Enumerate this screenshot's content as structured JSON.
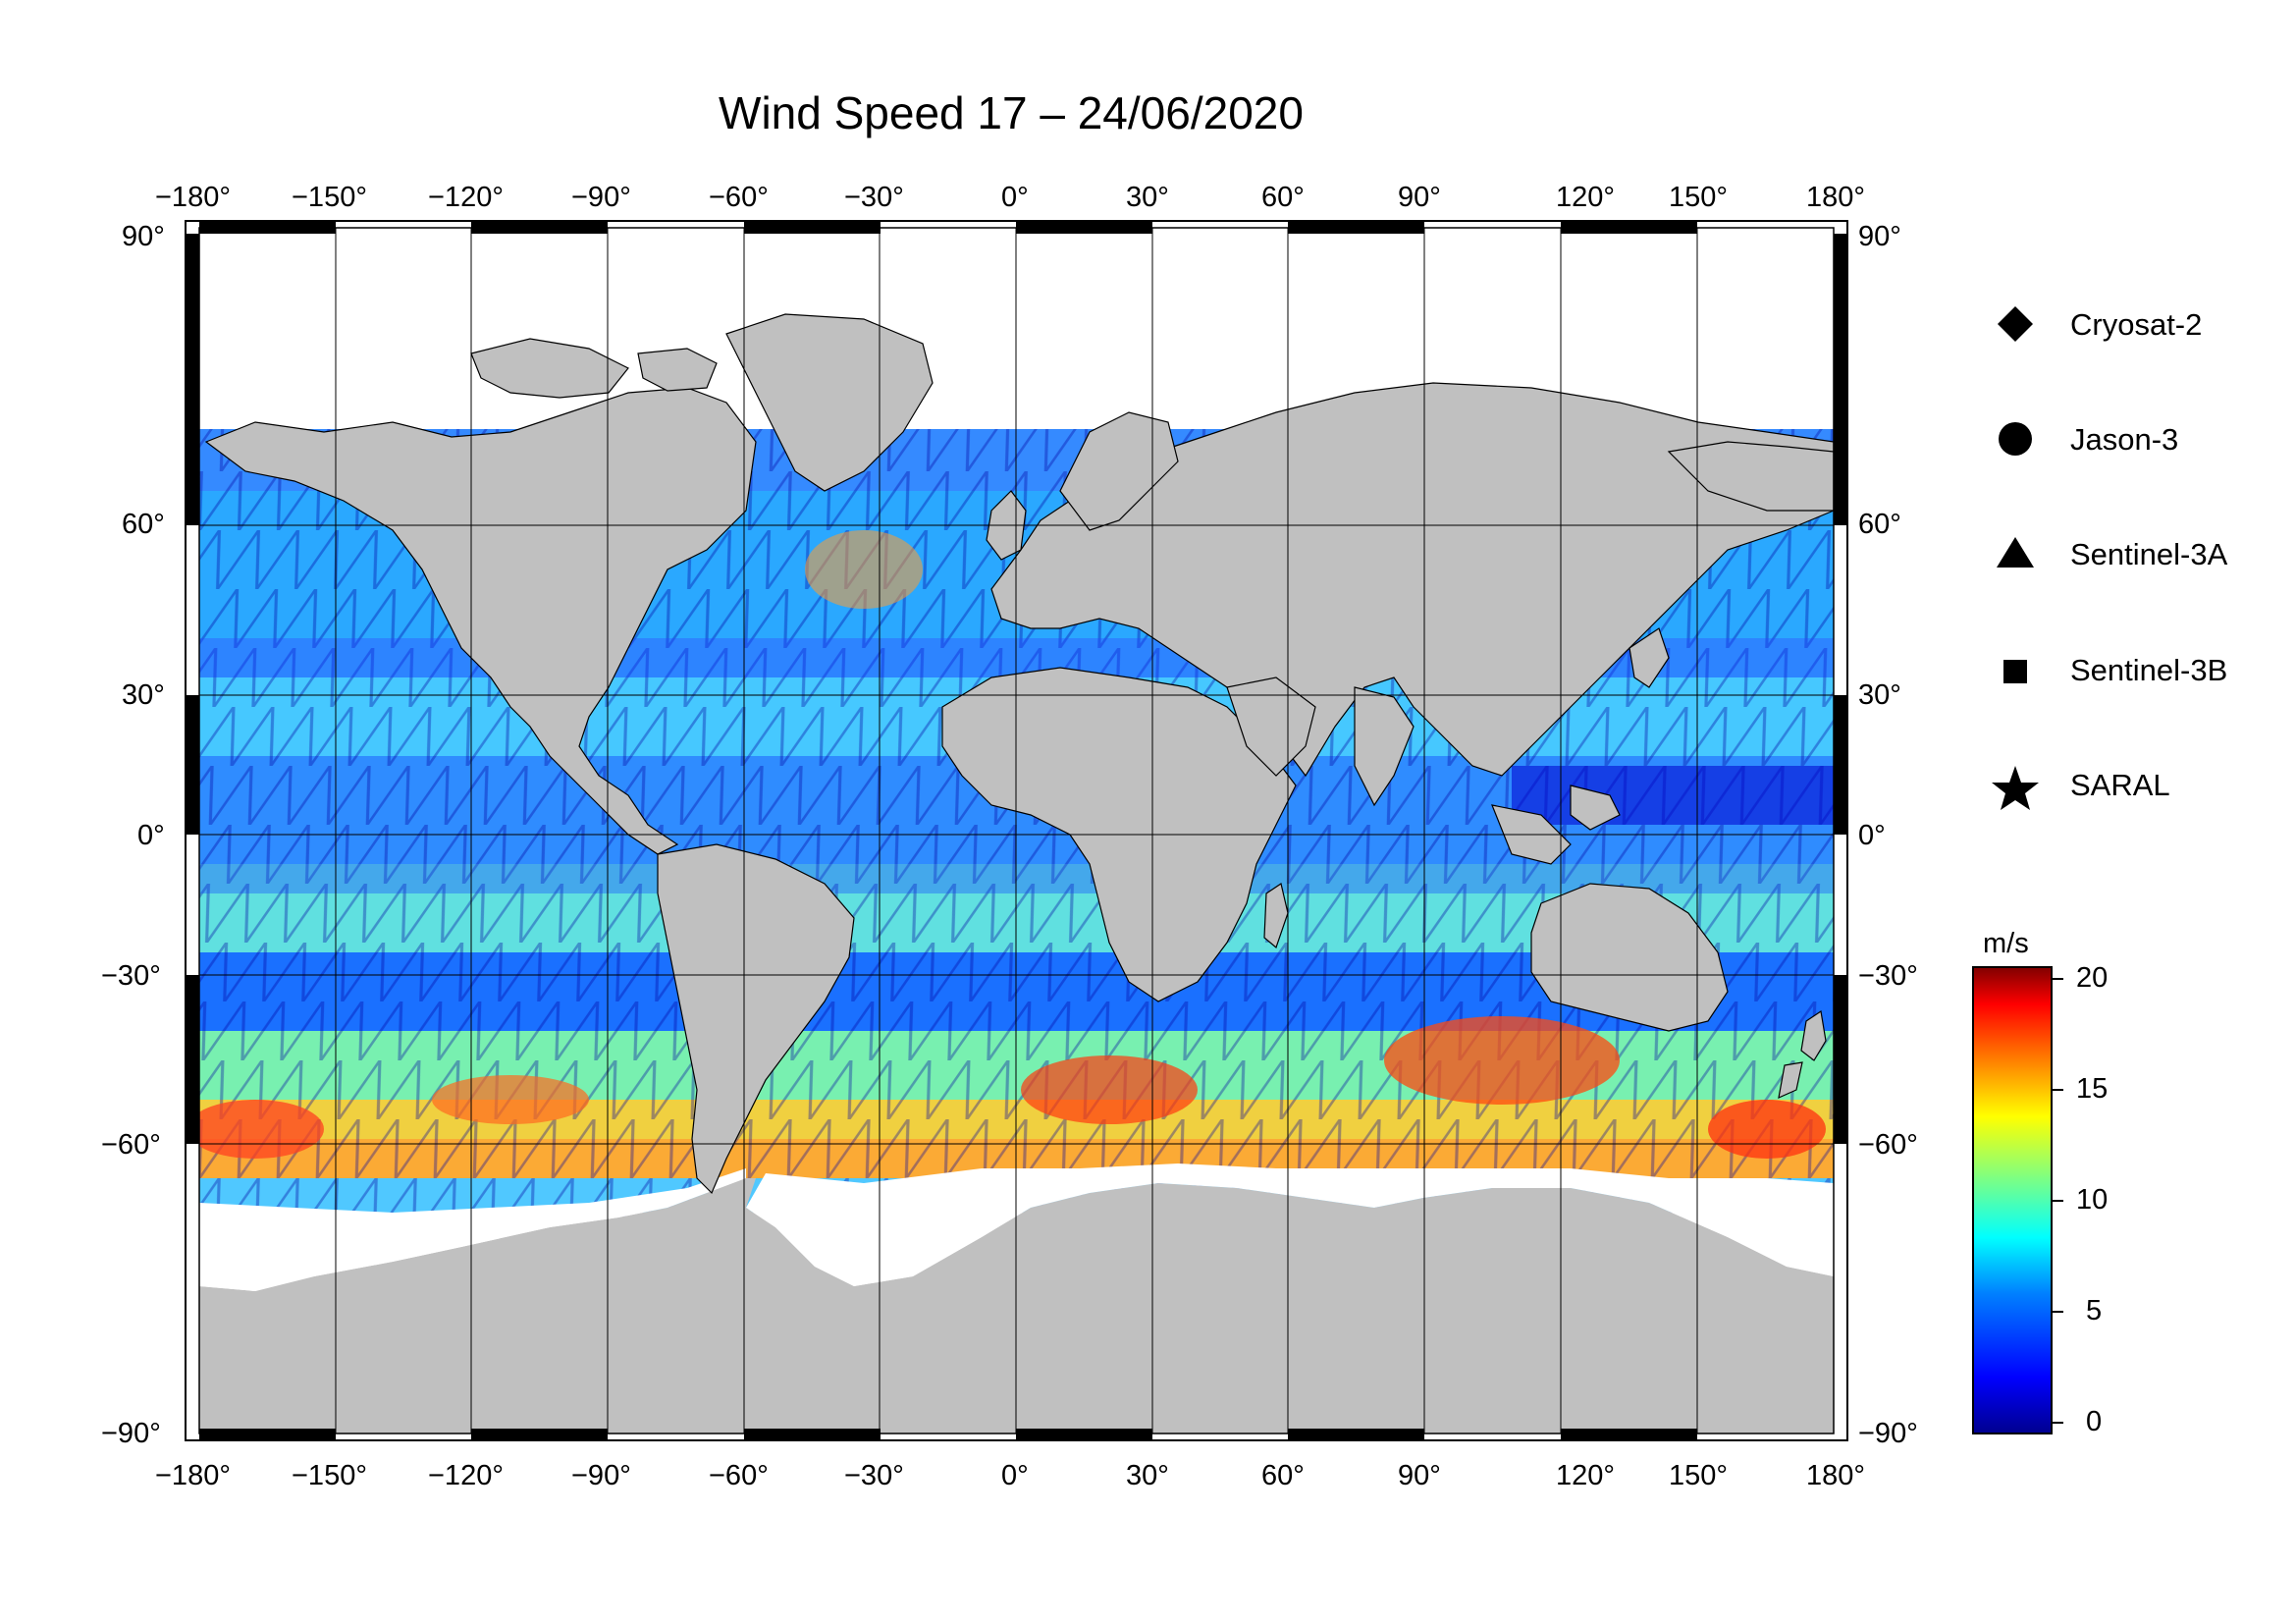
{
  "title": "Wind Speed 17 – 24/06/2020",
  "map": {
    "lon_ticks": [
      "−180°",
      "−150°",
      "−120°",
      "−90°",
      "−60°",
      "−30°",
      "0°",
      "30°",
      "60°",
      "90°",
      "120°",
      "150°",
      "180°"
    ],
    "lat_ticks_left": [
      "90°",
      "60°",
      "30°",
      "0°",
      "−30°",
      "−60°",
      "−90°"
    ],
    "lat_ticks_right": [
      "90°",
      "60°",
      "30°",
      "0°",
      "−30°",
      "−60°",
      "−90°"
    ],
    "lon_values": [
      -180,
      -150,
      -120,
      -90,
      -60,
      -30,
      0,
      30,
      60,
      90,
      120,
      150,
      180
    ],
    "lat_values": [
      90,
      60,
      30,
      0,
      -30,
      -60,
      -90
    ],
    "land_color": "#c0c0c0",
    "ice_color": "#ffffff"
  },
  "legend": {
    "items": [
      {
        "label": "Cryosat-2",
        "symbol": "diamond-icon"
      },
      {
        "label": "Jason-3",
        "symbol": "circle-icon"
      },
      {
        "label": "Sentinel-3A",
        "symbol": "triangle-icon"
      },
      {
        "label": "Sentinel-3B",
        "symbol": "square-icon"
      },
      {
        "label": "SARAL",
        "symbol": "star-icon"
      }
    ]
  },
  "colorbar": {
    "unit": "m/s",
    "ticks": [
      "0",
      "5",
      "10",
      "15",
      "20"
    ],
    "tick_values": [
      0,
      5,
      10,
      15,
      20
    ],
    "min": -0.5,
    "max": 20.5,
    "colors": [
      "#00008f",
      "#0000ff",
      "#0080ff",
      "#00ffff",
      "#80ff80",
      "#ffff00",
      "#ff8000",
      "#ff0000",
      "#800000"
    ]
  }
}
